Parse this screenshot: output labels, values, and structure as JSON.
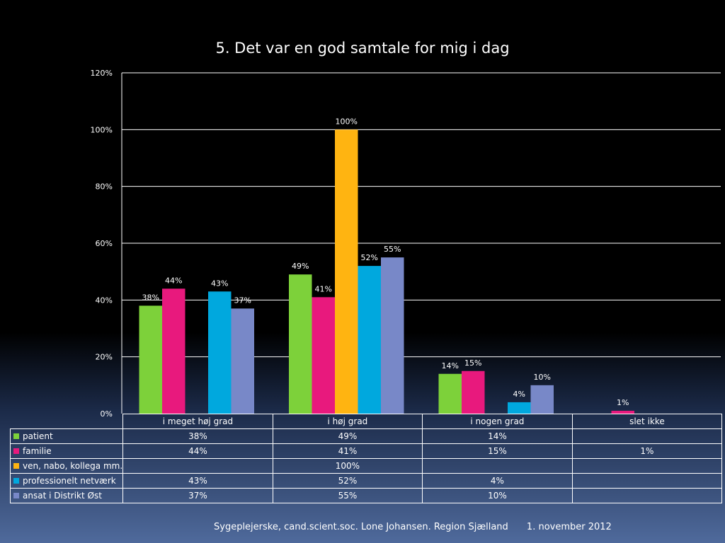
{
  "chart_data": {
    "type": "bar",
    "title": "5. Det var en god samtale for mig i dag",
    "categories": [
      "i meget høj grad",
      "i høj grad",
      "i nogen grad",
      "slet ikke"
    ],
    "series": [
      {
        "name": "patient",
        "color": "#7dd13a",
        "values": [
          38,
          49,
          14,
          null
        ],
        "labels": [
          "38%",
          "49%",
          "14%",
          ""
        ]
      },
      {
        "name": "familie",
        "color": "#e8197d",
        "values": [
          44,
          41,
          15,
          1
        ],
        "labels": [
          "44%",
          "41%",
          "15%",
          "1%"
        ]
      },
      {
        "name": "ven, nabo, kollega mm.",
        "color": "#ffb411",
        "values": [
          null,
          100,
          null,
          null
        ],
        "labels": [
          "",
          "100%",
          "",
          ""
        ]
      },
      {
        "name": "professionelt netværk",
        "color": "#00a8de",
        "values": [
          43,
          52,
          4,
          null
        ],
        "labels": [
          "43%",
          "52%",
          "4%",
          ""
        ]
      },
      {
        "name": "ansat i Distrikt Øst",
        "color": "#7888c8",
        "values": [
          37,
          55,
          10,
          null
        ],
        "labels": [
          "37%",
          "55%",
          "10%",
          ""
        ]
      }
    ],
    "ylim": [
      0,
      120
    ],
    "yticks": [
      "0%",
      "20%",
      "40%",
      "60%",
      "80%",
      "100%",
      "120%"
    ],
    "grid": true,
    "legend": "data-table"
  },
  "footer": {
    "author": "Sygeplejerske, cand.scient.soc. Lone Johansen. Region Sjælland",
    "date": "1. november 2012"
  }
}
